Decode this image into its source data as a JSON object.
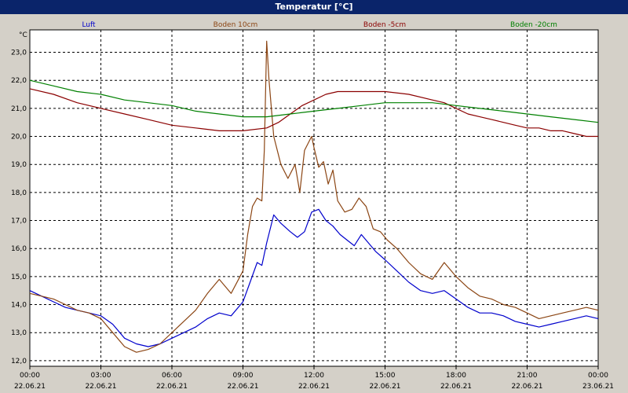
{
  "window": {
    "title": "Temperatur [°C]"
  },
  "chart_data": {
    "type": "line",
    "title": "Temperatur [°C]",
    "ylabel": "°C",
    "xlabel": "",
    "ylim": [
      11.8,
      23.8
    ],
    "xlim": [
      0,
      24
    ],
    "grid": true,
    "legend_position": "top",
    "yticks": [
      12,
      13,
      14,
      15,
      16,
      17,
      18,
      19,
      20,
      21,
      22,
      23
    ],
    "ytick_labels": [
      "12,0",
      "13,0",
      "14,0",
      "15,0",
      "16,0",
      "17,0",
      "18,0",
      "19,0",
      "20,0",
      "21,0",
      "22,0",
      "23,0"
    ],
    "xtick_labels": [
      {
        "time": "00:00",
        "date": "22.06.21"
      },
      {
        "time": "03:00",
        "date": "22.06.21"
      },
      {
        "time": "06:00",
        "date": "22.06.21"
      },
      {
        "time": "09:00",
        "date": "22.06.21"
      },
      {
        "time": "12:00",
        "date": "22.06.21"
      },
      {
        "time": "15:00",
        "date": "22.06.21"
      },
      {
        "time": "18:00",
        "date": "22.06.21"
      },
      {
        "time": "21:00",
        "date": "22.06.21"
      },
      {
        "time": "00:00",
        "date": "23.06.21"
      }
    ],
    "series": [
      {
        "name": "Luft",
        "color": "#0000cc",
        "x": [
          0,
          0.5,
          1,
          1.5,
          2,
          2.5,
          3,
          3.5,
          4,
          4.5,
          5,
          5.5,
          6,
          6.5,
          7,
          7.5,
          8,
          8.5,
          9,
          9.3,
          9.6,
          9.8,
          10,
          10.3,
          10.6,
          11,
          11.3,
          11.6,
          11.9,
          12.2,
          12.5,
          12.8,
          13.1,
          13.4,
          13.7,
          14,
          14.3,
          14.6,
          15,
          15.5,
          16,
          16.5,
          17,
          17.5,
          18,
          18.5,
          19,
          19.5,
          20,
          20.5,
          21,
          21.5,
          22,
          22.5,
          23,
          23.5,
          24
        ],
        "y": [
          14.5,
          14.3,
          14.1,
          13.9,
          13.8,
          13.7,
          13.6,
          13.3,
          12.8,
          12.6,
          12.5,
          12.6,
          12.8,
          13.0,
          13.2,
          13.5,
          13.7,
          13.6,
          14.1,
          14.8,
          15.5,
          15.4,
          16.2,
          17.2,
          16.9,
          16.6,
          16.4,
          16.6,
          17.3,
          17.4,
          17.0,
          16.8,
          16.5,
          16.3,
          16.1,
          16.5,
          16.2,
          15.9,
          15.6,
          15.2,
          14.8,
          14.5,
          14.4,
          14.5,
          14.2,
          13.9,
          13.7,
          13.7,
          13.6,
          13.4,
          13.3,
          13.2,
          13.3,
          13.4,
          13.5,
          13.6,
          13.5
        ]
      },
      {
        "name": "Boden 10cm",
        "color": "#8b4513",
        "x": [
          0,
          0.5,
          1,
          1.5,
          2,
          2.5,
          3,
          3.5,
          4,
          4.5,
          5,
          5.5,
          6,
          6.5,
          7,
          7.5,
          8,
          8.5,
          9,
          9.2,
          9.4,
          9.6,
          9.8,
          9.9,
          10,
          10.1,
          10.3,
          10.6,
          10.9,
          11.2,
          11.4,
          11.6,
          11.9,
          12.0,
          12.2,
          12.4,
          12.6,
          12.8,
          13.0,
          13.3,
          13.6,
          13.9,
          14.2,
          14.5,
          14.8,
          15.1,
          15.5,
          16,
          16.5,
          17,
          17.5,
          18,
          18.5,
          19,
          19.5,
          20,
          20.5,
          21,
          21.5,
          22,
          22.5,
          23,
          23.5,
          24
        ],
        "y": [
          14.4,
          14.3,
          14.2,
          14.0,
          13.8,
          13.7,
          13.5,
          13.0,
          12.5,
          12.3,
          12.4,
          12.6,
          13.0,
          13.4,
          13.8,
          14.4,
          14.9,
          14.4,
          15.2,
          16.5,
          17.5,
          17.8,
          17.7,
          19.5,
          23.4,
          22.0,
          20.0,
          19.0,
          18.5,
          19.0,
          18.0,
          19.5,
          20.0,
          19.6,
          18.9,
          19.1,
          18.3,
          18.8,
          17.7,
          17.3,
          17.4,
          17.8,
          17.5,
          16.7,
          16.6,
          16.3,
          16.0,
          15.5,
          15.1,
          14.9,
          15.5,
          15.0,
          14.6,
          14.3,
          14.2,
          14.0,
          13.9,
          13.7,
          13.5,
          13.6,
          13.7,
          13.8,
          13.9,
          13.8
        ]
      },
      {
        "name": "Boden -5cm",
        "color": "#8b0000",
        "x": [
          0,
          1,
          2,
          3,
          4,
          5,
          6,
          7,
          8,
          9,
          10,
          10.5,
          11,
          11.5,
          12,
          12.5,
          13,
          13.5,
          14,
          15,
          16,
          17,
          17.5,
          18,
          18.5,
          19,
          19.5,
          20,
          20.5,
          21,
          21.5,
          22,
          22.5,
          23,
          23.5,
          24
        ],
        "y": [
          21.7,
          21.5,
          21.2,
          21.0,
          20.8,
          20.6,
          20.4,
          20.3,
          20.2,
          20.2,
          20.3,
          20.5,
          20.8,
          21.1,
          21.3,
          21.5,
          21.6,
          21.6,
          21.6,
          21.6,
          21.5,
          21.3,
          21.2,
          21.0,
          20.8,
          20.7,
          20.6,
          20.5,
          20.4,
          20.3,
          20.3,
          20.2,
          20.2,
          20.1,
          20.0,
          20.0
        ]
      },
      {
        "name": "Boden -20cm",
        "color": "#008000",
        "x": [
          0,
          1,
          2,
          3,
          4,
          5,
          6,
          7,
          8,
          9,
          10,
          11,
          12,
          13,
          14,
          15,
          16,
          17,
          18,
          19,
          20,
          21,
          22,
          23,
          24
        ],
        "y": [
          22.0,
          21.8,
          21.6,
          21.5,
          21.3,
          21.2,
          21.1,
          20.9,
          20.8,
          20.7,
          20.7,
          20.8,
          20.9,
          21.0,
          21.1,
          21.2,
          21.2,
          21.2,
          21.1,
          21.0,
          20.9,
          20.8,
          20.7,
          20.6,
          20.5
        ]
      }
    ]
  }
}
